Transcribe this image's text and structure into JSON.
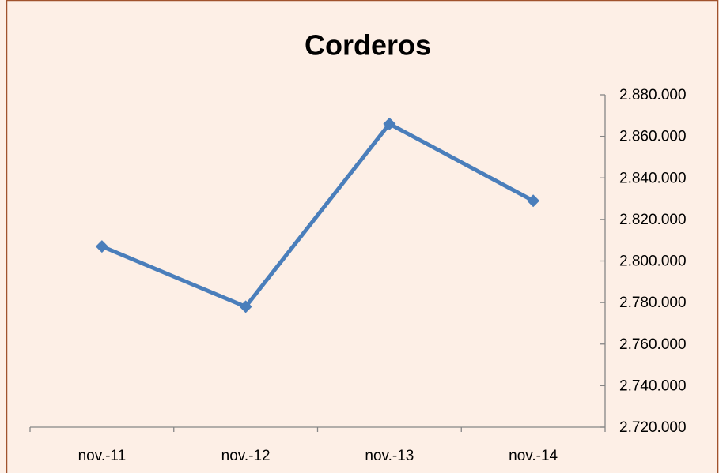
{
  "chart_data": {
    "type": "line",
    "title": "Corderos",
    "categories": [
      "nov.-11",
      "nov.-12",
      "nov.-13",
      "nov.-14"
    ],
    "series": [
      {
        "name": "Corderos",
        "color": "#4a7ebb",
        "values": [
          2807000,
          2778000,
          2866000,
          2829000
        ]
      }
    ],
    "ylim": [
      2720000,
      2880000
    ],
    "yticks": [
      {
        "value": 2720000,
        "label": "2.720.000"
      },
      {
        "value": 2740000,
        "label": "2.740.000"
      },
      {
        "value": 2760000,
        "label": "2.760.000"
      },
      {
        "value": 2780000,
        "label": "2.780.000"
      },
      {
        "value": 2800000,
        "label": "2.800.000"
      },
      {
        "value": 2820000,
        "label": "2.820.000"
      },
      {
        "value": 2840000,
        "label": "2.840.000"
      },
      {
        "value": 2860000,
        "label": "2.860.000"
      },
      {
        "value": 2880000,
        "label": "2.880.000"
      }
    ],
    "y_axis_side": "right",
    "grid": false
  }
}
